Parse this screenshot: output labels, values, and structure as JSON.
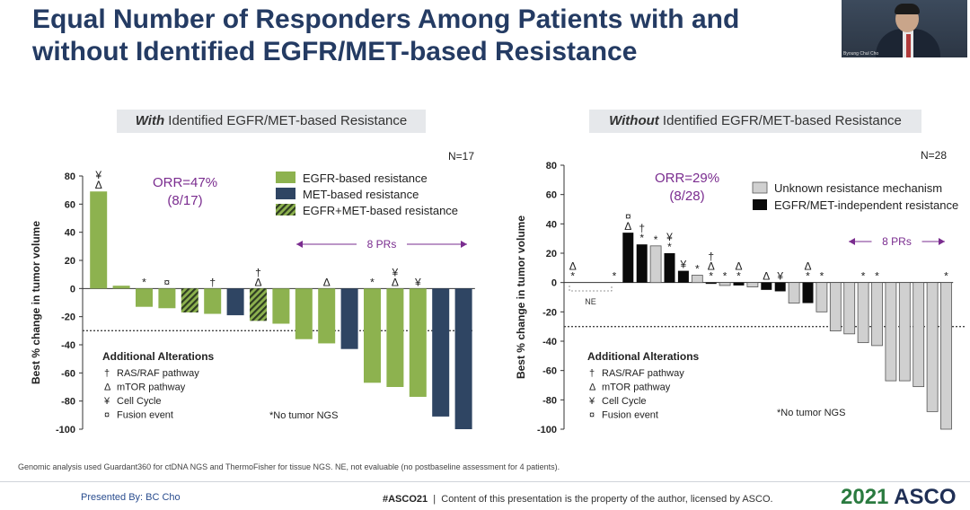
{
  "slide": {
    "title": "Equal Number of Responders Among Patients with and without Identified EGFR/MET-based Resistance",
    "presenter_thumb_name": "Byoung Chul Cho",
    "footnote": "Genomic analysis used Guardant360 for ctDNA NGS and ThermoFisher for tissue NGS. NE, not evaluable (no postbaseline assessment for 4 patients).",
    "presented_by": "Presented By: BC Cho",
    "hashtag": "#ASCO21",
    "separator": "|",
    "copyright": "Content of this presentation is the property of the author, licensed by ASCO.",
    "brand_year": "2021",
    "brand_name": "ASCO"
  },
  "colors": {
    "egfr": "#8db24f",
    "met": "#2f4563",
    "unknown": "#d0d0d0",
    "independent": "#0a0a0a",
    "orr": "#7a2c8f",
    "prs": "#7a2c8f",
    "title": "#243b63"
  },
  "chart_data": [
    {
      "type": "bar",
      "subtitle_bold": "With",
      "subtitle_rest": " Identified EGFR/MET-based Resistance",
      "n_label": "N=17",
      "orr_line1": "ORR=47%",
      "orr_line2": "(8/17)",
      "prs_label": "8 PRs",
      "ylabel": "Best % change in tumor volume",
      "ylim": [
        -100,
        80
      ],
      "yticks": [
        80,
        60,
        40,
        20,
        0,
        -20,
        -40,
        -60,
        -80,
        -100
      ],
      "pr_threshold": -30,
      "legend": [
        {
          "key": "egfr",
          "label": "EGFR-based resistance"
        },
        {
          "key": "met",
          "label": "MET-based resistance"
        },
        {
          "key": "both",
          "label": "EGFR+MET-based resistance"
        }
      ],
      "alterations_title": "Additional Alterations",
      "alterations": [
        {
          "symbol": "†",
          "label": "RAS/RAF pathway"
        },
        {
          "symbol": "Δ",
          "label": "mTOR pathway"
        },
        {
          "symbol": "¥",
          "label": "Cell Cycle"
        },
        {
          "symbol": "¤",
          "label": "Fusion event"
        }
      ],
      "no_ngs_note": "*No tumor NGS",
      "bars": [
        {
          "value": 69,
          "type": "egfr",
          "marks": [
            "¥",
            "Δ"
          ]
        },
        {
          "value": 2,
          "type": "egfr",
          "marks": []
        },
        {
          "value": -13,
          "type": "egfr",
          "marks": [
            "*"
          ]
        },
        {
          "value": -14,
          "type": "egfr",
          "marks": [
            "¤"
          ]
        },
        {
          "value": -17,
          "type": "both",
          "marks": []
        },
        {
          "value": -18,
          "type": "egfr",
          "marks": [
            "†"
          ]
        },
        {
          "value": -19,
          "type": "met",
          "marks": []
        },
        {
          "value": -23,
          "type": "both",
          "marks": [
            "†",
            "Δ"
          ]
        },
        {
          "value": -25,
          "type": "egfr",
          "marks": []
        },
        {
          "value": -36,
          "type": "egfr",
          "marks": []
        },
        {
          "value": -39,
          "type": "egfr",
          "marks": [
            "Δ"
          ]
        },
        {
          "value": -43,
          "type": "met",
          "marks": []
        },
        {
          "value": -67,
          "type": "egfr",
          "marks": [
            "*"
          ]
        },
        {
          "value": -70,
          "type": "egfr",
          "marks": [
            "¥",
            "Δ"
          ]
        },
        {
          "value": -77,
          "type": "egfr",
          "marks": [
            "¥"
          ]
        },
        {
          "value": -91,
          "type": "met",
          "marks": []
        },
        {
          "value": -100,
          "type": "met",
          "marks": []
        }
      ]
    },
    {
      "type": "bar",
      "subtitle_bold": "Without",
      "subtitle_rest": " Identified EGFR/MET-based Resistance",
      "n_label": "N=28",
      "orr_line1": "ORR=29%",
      "orr_line2": "(8/28)",
      "prs_label": "8 PRs",
      "ne_label": "NE",
      "ylabel": "Best % change in tumor volume",
      "ylim": [
        -100,
        80
      ],
      "yticks": [
        80,
        60,
        40,
        20,
        0,
        -20,
        -40,
        -60,
        -80,
        -100
      ],
      "pr_threshold": -30,
      "legend": [
        {
          "key": "unknown",
          "label": "Unknown resistance mechanism"
        },
        {
          "key": "independent",
          "label": "EGFR/MET-independent resistance"
        }
      ],
      "alterations_title": "Additional Alterations",
      "alterations": [
        {
          "symbol": "†",
          "label": "RAS/RAF pathway"
        },
        {
          "symbol": "Δ",
          "label": "mTOR pathway"
        },
        {
          "symbol": "¥",
          "label": "Cell Cycle"
        },
        {
          "symbol": "¤",
          "label": "Fusion event"
        }
      ],
      "no_ngs_note": "*No tumor NGS",
      "bars": [
        {
          "value": 0,
          "type": "ne",
          "marks": [
            "Δ",
            "*"
          ]
        },
        {
          "value": 0,
          "type": "ne",
          "marks": []
        },
        {
          "value": 0,
          "type": "ne",
          "marks": []
        },
        {
          "value": 0,
          "type": "ne",
          "marks": [
            "*"
          ]
        },
        {
          "value": 34,
          "type": "independent",
          "marks": [
            "¤",
            "Δ"
          ]
        },
        {
          "value": 26,
          "type": "independent",
          "marks": [
            "†",
            "*"
          ]
        },
        {
          "value": 25,
          "type": "unknown",
          "marks": [
            "*"
          ]
        },
        {
          "value": 20,
          "type": "independent",
          "marks": [
            "¥",
            "*"
          ]
        },
        {
          "value": 8,
          "type": "independent",
          "marks": [
            "¥"
          ]
        },
        {
          "value": 5,
          "type": "unknown",
          "marks": [
            "*"
          ]
        },
        {
          "value": 0,
          "type": "independent",
          "marks": [
            "†",
            "Δ",
            "*"
          ]
        },
        {
          "value": -2,
          "type": "unknown",
          "marks": [
            "*"
          ]
        },
        {
          "value": -2,
          "type": "independent",
          "marks": [
            "Δ",
            "*"
          ]
        },
        {
          "value": -3,
          "type": "unknown",
          "marks": []
        },
        {
          "value": -5,
          "type": "independent",
          "marks": [
            "Δ"
          ]
        },
        {
          "value": -6,
          "type": "independent",
          "marks": [
            "¥"
          ]
        },
        {
          "value": -14,
          "type": "unknown",
          "marks": []
        },
        {
          "value": -14,
          "type": "independent",
          "marks": [
            "Δ",
            "*"
          ]
        },
        {
          "value": -20,
          "type": "unknown",
          "marks": [
            "*"
          ]
        },
        {
          "value": -33,
          "type": "unknown",
          "marks": []
        },
        {
          "value": -35,
          "type": "unknown",
          "marks": []
        },
        {
          "value": -41,
          "type": "unknown",
          "marks": [
            "*"
          ]
        },
        {
          "value": -43,
          "type": "unknown",
          "marks": [
            "*"
          ]
        },
        {
          "value": -67,
          "type": "unknown",
          "marks": []
        },
        {
          "value": -67,
          "type": "unknown",
          "marks": []
        },
        {
          "value": -71,
          "type": "unknown",
          "marks": []
        },
        {
          "value": -88,
          "type": "unknown",
          "marks": []
        },
        {
          "value": -100,
          "type": "unknown",
          "marks": [
            "*"
          ]
        }
      ]
    }
  ]
}
